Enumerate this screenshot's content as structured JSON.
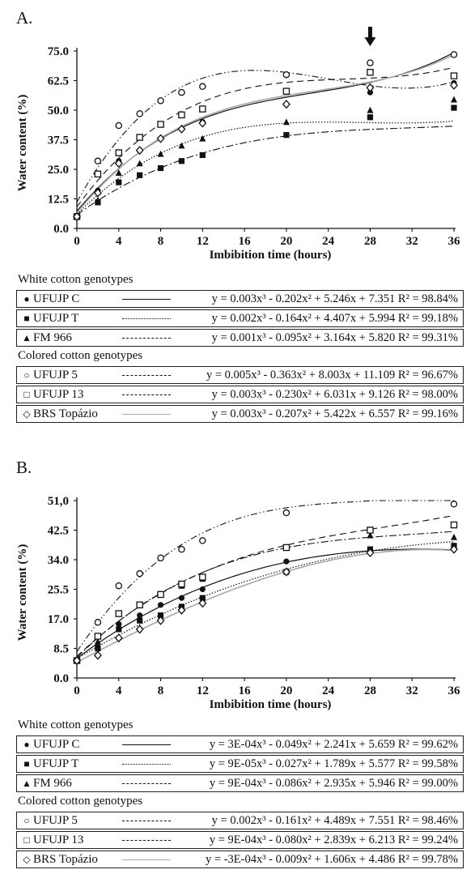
{
  "panels": [
    {
      "label": "A.",
      "group1_title": "White cotton genotypes",
      "group2_title": "Colored cotton genotypes",
      "rows": [
        {
          "symbol": "●",
          "name": "UFUJP C",
          "eq": "y = 0.003x³ - 0.202x² + 5.246x + 7.351 R² = 98.84%"
        },
        {
          "symbol": "■",
          "name": "UFUJP T",
          "eq": "y = 0.002x³ - 0.164x² + 4.407x + 5.994 R² = 99.18%"
        },
        {
          "symbol": "▲",
          "name": "FM 966",
          "eq": "y = 0.001x³ - 0.095x² + 3.164x + 5.820 R² = 99.31%"
        },
        {
          "symbol": "○",
          "name": "UFUJP 5",
          "eq": "y = 0.005x³ - 0.363x² + 8.003x + 11.109 R² = 96.67%"
        },
        {
          "symbol": "□",
          "name": "UFUJP 13",
          "eq": "y = 0.003x³ - 0.230x² + 6.031x + 9.126 R² = 98.00%"
        },
        {
          "symbol": "◇",
          "name": "BRS Topázio",
          "eq": "y = 0.003x³ - 0.207x² + 5.422x + 6.557 R² = 99.16%"
        }
      ]
    },
    {
      "label": "B.",
      "group1_title": "White cotton genotypes",
      "group2_title": "Colored cotton genotypes",
      "rows": [
        {
          "symbol": "●",
          "name": "UFUJP C",
          "eq": "y = 3E-04x³ - 0.049x² + 2.241x + 5.659 R² = 99.62%"
        },
        {
          "symbol": "■",
          "name": "UFUJP T",
          "eq": "y = 9E-05x³ - 0.027x² + 1.789x + 5.577 R² = 99.58%"
        },
        {
          "symbol": "▲",
          "name": "FM 966",
          "eq": "y = 9E-04x³ - 0.086x² + 2.935x + 5.946 R² = 99.00%"
        },
        {
          "symbol": "○",
          "name": "UFUJP 5",
          "eq": "y = 0.002x³ - 0.161x² + 4.489x + 7.551 R² = 98.46%"
        },
        {
          "symbol": "□",
          "name": "UFUJP 13",
          "eq": "y = 9E-04x³ - 0.080x² + 2.839x + 6.213 R² = 99.24%"
        },
        {
          "symbol": "◇",
          "name": "BRS Topázio",
          "eq": "y = -3E-04x³ - 0.009x² + 1.606x + 4.486 R² = 99.78%"
        }
      ]
    }
  ],
  "chart_data": [
    {
      "type": "scatter",
      "title": "A.",
      "xlabel": "Imbibition  time (hours)",
      "ylabel": "Water content (%)",
      "xticks": [
        0,
        4,
        8,
        12,
        16,
        20,
        24,
        28,
        32,
        36
      ],
      "yticks": [
        "0.0",
        "12.5",
        "25.0",
        "37.5",
        "50.0",
        "62.5",
        "75.0"
      ],
      "xlim": [
        0,
        36
      ],
      "ylim": [
        0,
        75
      ],
      "x": [
        0,
        2,
        4,
        6,
        8,
        10,
        12,
        20,
        28,
        36
      ],
      "annotation": "arrow at 28 h",
      "series": [
        {
          "name": "UFUJP C",
          "marker": "circle-filled",
          "line": "solid",
          "coef": [
            0.003,
            -0.202,
            5.246,
            7.351
          ],
          "values": [
            5.0,
            16.0,
            28.5,
            33.0,
            38.0,
            42.0,
            45.0,
            52.5,
            57.5,
            61.5
          ]
        },
        {
          "name": "UFUJP T",
          "marker": "square-filled",
          "line": "dotted",
          "coef": [
            0.002,
            -0.164,
            4.407,
            5.994
          ],
          "values": [
            5.0,
            11.0,
            19.5,
            22.5,
            25.5,
            28.5,
            31.0,
            39.5,
            47.0,
            51.0
          ]
        },
        {
          "name": "FM 966",
          "marker": "triangle-filled",
          "line": "dashdot",
          "coef": [
            0.001,
            -0.095,
            3.164,
            5.82
          ],
          "values": [
            5.0,
            12.0,
            23.5,
            27.5,
            31.5,
            35.0,
            38.0,
            45.0,
            50.0,
            54.5
          ]
        },
        {
          "name": "UFUJP 5",
          "marker": "circle-open",
          "line": "dashdotdot",
          "coef": [
            0.005,
            -0.363,
            8.003,
            11.109
          ],
          "values": [
            5.0,
            28.5,
            43.5,
            48.5,
            54.0,
            57.5,
            60.0,
            65.0,
            70.0,
            73.5
          ]
        },
        {
          "name": "UFUJP 13",
          "marker": "square-open",
          "line": "dashed",
          "coef": [
            0.003,
            -0.23,
            6.031,
            9.126
          ],
          "values": [
            5.0,
            23.0,
            32.0,
            38.5,
            44.0,
            48.0,
            50.5,
            58.0,
            66.0,
            64.5
          ]
        },
        {
          "name": "BRS Topázio",
          "marker": "diamond-open",
          "line": "solid-gray",
          "coef": [
            0.003,
            -0.207,
            5.422,
            6.557
          ],
          "values": [
            5.0,
            15.0,
            27.5,
            33.0,
            38.0,
            42.0,
            44.5,
            52.5,
            59.5,
            60.5
          ]
        }
      ]
    },
    {
      "type": "scatter",
      "title": "B.",
      "xlabel": "Imbibition  time (hours)",
      "ylabel": "Water content (%)",
      "xticks": [
        0,
        4,
        8,
        12,
        16,
        20,
        24,
        28,
        32,
        36
      ],
      "yticks": [
        "0.0",
        "8.5",
        "17.0",
        "25.5",
        "34.0",
        "42.5",
        "51,0"
      ],
      "xlim": [
        0,
        36
      ],
      "ylim": [
        0,
        51
      ],
      "x": [
        0,
        2,
        4,
        6,
        8,
        10,
        12,
        20,
        28,
        36
      ],
      "series": [
        {
          "name": "UFUJP C",
          "marker": "circle-filled",
          "line": "solid",
          "coef": [
            0.0003,
            -0.049,
            2.241,
            5.659
          ],
          "values": [
            5.0,
            9.0,
            15.5,
            18.0,
            21.0,
            23.0,
            25.5,
            33.5,
            37.0,
            38.0
          ]
        },
        {
          "name": "UFUJP T",
          "marker": "square-filled",
          "line": "dotted",
          "coef": [
            9e-05,
            -0.027,
            1.789,
            5.577
          ],
          "values": [
            5.0,
            8.5,
            14.0,
            16.5,
            18.0,
            20.5,
            23.0,
            30.5,
            37.0,
            38.0
          ]
        },
        {
          "name": "FM 966",
          "marker": "triangle-filled",
          "line": "dashdot",
          "coef": [
            0.0009,
            -0.086,
            2.935,
            5.946
          ],
          "values": [
            5.0,
            10.5,
            18.5,
            21.0,
            24.0,
            26.5,
            28.5,
            37.5,
            41.0,
            40.5
          ]
        },
        {
          "name": "UFUJP 5",
          "marker": "circle-open",
          "line": "dashdotdot",
          "coef": [
            0.002,
            -0.161,
            4.489,
            7.551
          ],
          "values": [
            5.0,
            16.0,
            26.5,
            30.0,
            34.5,
            37.0,
            39.5,
            47.5,
            42.5,
            50.0
          ]
        },
        {
          "name": "UFUJP 13",
          "marker": "square-open",
          "line": "dashed",
          "coef": [
            0.0009,
            -0.08,
            2.839,
            6.213
          ],
          "values": [
            5.0,
            12.0,
            18.5,
            21.0,
            24.0,
            27.0,
            29.0,
            37.5,
            42.5,
            44.0
          ]
        },
        {
          "name": "BRS Topázio",
          "marker": "diamond-open",
          "line": "solid-gray",
          "coef": [
            -0.0003,
            -0.009,
            1.606,
            4.486
          ],
          "values": [
            5.0,
            6.5,
            11.5,
            14.0,
            16.5,
            19.5,
            21.5,
            30.5,
            36.0,
            37.0
          ]
        }
      ]
    }
  ]
}
